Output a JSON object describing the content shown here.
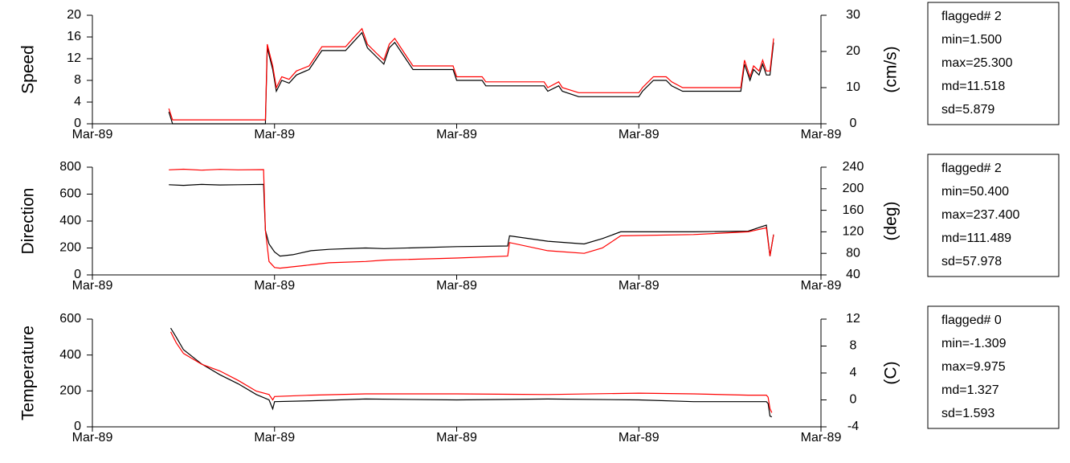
{
  "chart_data": [
    {
      "type": "line",
      "ylabel": "Speed",
      "y2label": "(cm/s)",
      "xlim": [
        0,
        4
      ],
      "xticks": [
        {
          "value": 0,
          "label": "Mar-89"
        },
        {
          "value": 1,
          "label": "Mar-89"
        },
        {
          "value": 2,
          "label": "Mar-89"
        },
        {
          "value": 3,
          "label": "Mar-89"
        },
        {
          "value": 4,
          "label": "Mar-89"
        }
      ],
      "ylim": [
        0,
        20
      ],
      "yticks": [
        0,
        4,
        8,
        12,
        16,
        20
      ],
      "y2lim": [
        0,
        30
      ],
      "y2ticks": [
        0,
        10,
        20,
        30
      ],
      "x": [
        0.42,
        0.44,
        0.95,
        0.96,
        0.99,
        1.01,
        1.04,
        1.08,
        1.12,
        1.19,
        1.23,
        1.26,
        1.39,
        1.43,
        1.48,
        1.51,
        1.57,
        1.6,
        1.63,
        1.66,
        1.72,
        1.76,
        1.98,
        2.0,
        2.14,
        2.16,
        2.48,
        2.5,
        2.56,
        2.58,
        2.67,
        3.0,
        3.02,
        3.08,
        3.15,
        3.18,
        3.24,
        3.56,
        3.58,
        3.61,
        3.63,
        3.66,
        3.68,
        3.7,
        3.72,
        3.74
      ],
      "series": [
        {
          "color": "#000000",
          "values": [
            2.2,
            0,
            0,
            14,
            10,
            6,
            8,
            7.5,
            9,
            10,
            12,
            13.5,
            13.5,
            15,
            16.8,
            14,
            12,
            11,
            14,
            15,
            12,
            10,
            10,
            8,
            8,
            7,
            7,
            6,
            7,
            6,
            5,
            5,
            6,
            8,
            8,
            7,
            6,
            6,
            11,
            8,
            10,
            9,
            11,
            9,
            9,
            15
          ]
        },
        {
          "color": "#ff0000",
          "axis": "y2",
          "values": [
            4.2,
            1.1,
            1.1,
            22,
            16,
            10,
            13,
            12.3,
            14.6,
            16,
            19,
            21.3,
            21.3,
            23.6,
            26.3,
            22,
            19,
            17.6,
            22,
            23.6,
            19,
            16,
            16,
            13,
            13,
            11.6,
            11.6,
            10,
            11.6,
            10,
            8.6,
            8.6,
            10,
            13,
            13,
            11.6,
            10,
            10,
            17.6,
            13,
            16,
            14.6,
            17.6,
            14.6,
            14.6,
            23.6
          ]
        }
      ],
      "stats": [
        "flagged# 2",
        "min=1.500",
        "max=25.300",
        "md=11.518",
        "sd=5.879"
      ]
    },
    {
      "type": "line",
      "ylabel": "Direction",
      "y2label": "(deg)",
      "xlim": [
        0,
        4
      ],
      "xticks": [
        {
          "value": 0,
          "label": "Mar-89"
        },
        {
          "value": 1,
          "label": "Mar-89"
        },
        {
          "value": 2,
          "label": "Mar-89"
        },
        {
          "value": 3,
          "label": "Mar-89"
        },
        {
          "value": 4,
          "label": "Mar-89"
        }
      ],
      "ylim": [
        0,
        800
      ],
      "yticks": [
        0,
        200,
        400,
        600,
        800
      ],
      "y2lim": [
        40,
        240
      ],
      "y2ticks": [
        40,
        80,
        120,
        160,
        200,
        240
      ],
      "x": [
        0.42,
        0.5,
        0.6,
        0.7,
        0.8,
        0.94,
        0.95,
        0.97,
        1.0,
        1.03,
        1.1,
        1.2,
        1.3,
        1.5,
        1.6,
        2.0,
        2.28,
        2.29,
        2.5,
        2.7,
        2.8,
        2.9,
        3.3,
        3.6,
        3.7,
        3.72,
        3.74
      ],
      "series": [
        {
          "color": "#000000",
          "values": [
            670,
            665,
            672,
            668,
            670,
            672,
            330,
            230,
            170,
            140,
            150,
            180,
            190,
            200,
            195,
            210,
            215,
            290,
            250,
            230,
            270,
            320,
            320,
            325,
            370,
            140,
            300
          ]
        },
        {
          "color": "#ff0000",
          "axis": "y2",
          "values": [
            235,
            236.3,
            234.5,
            236,
            235,
            235.5,
            122.5,
            65,
            53.8,
            52.5,
            55,
            58.8,
            62.5,
            65,
            67.5,
            71.3,
            75,
            100,
            85,
            80,
            90,
            112.5,
            115,
            120,
            127.5,
            75,
            115
          ]
        }
      ],
      "stats": [
        "flagged# 2",
        "min=50.400",
        "max=237.400",
        "md=111.489",
        "sd=57.978"
      ]
    },
    {
      "type": "line",
      "ylabel": "Temperature",
      "y2label": "(C)",
      "xlim": [
        0,
        4
      ],
      "xticks": [
        {
          "value": 0,
          "label": "Mar-89"
        },
        {
          "value": 1,
          "label": "Mar-89"
        },
        {
          "value": 2,
          "label": "Mar-89"
        },
        {
          "value": 3,
          "label": "Mar-89"
        },
        {
          "value": 4,
          "label": "Mar-89"
        }
      ],
      "ylim": [
        0,
        600
      ],
      "yticks": [
        0,
        200,
        400,
        600
      ],
      "y2lim": [
        -4,
        12
      ],
      "y2ticks": [
        -4,
        0,
        4,
        8,
        12
      ],
      "x": [
        0.43,
        0.46,
        0.5,
        0.6,
        0.7,
        0.8,
        0.9,
        0.97,
        0.99,
        1.0,
        1.2,
        1.5,
        2.0,
        2.5,
        3.0,
        3.3,
        3.6,
        3.7,
        3.71,
        3.72,
        3.73
      ],
      "series": [
        {
          "color": "#000000",
          "values": [
            550,
            500,
            430,
            350,
            290,
            240,
            180,
            150,
            100,
            140,
            145,
            155,
            150,
            155,
            150,
            140,
            140,
            140,
            130,
            60,
            55
          ]
        },
        {
          "color": "#ff0000",
          "axis": "y2",
          "values": [
            10.1,
            8.5,
            6.9,
            5.3,
            4.3,
            2.9,
            1.3,
            0.8,
            0,
            0.5,
            0.7,
            0.9,
            0.9,
            0.8,
            1.0,
            0.9,
            0.7,
            0.7,
            0.4,
            -1.3,
            -1.9
          ]
        }
      ],
      "stats": [
        "flagged# 0",
        "min=-1.309",
        "max=9.975",
        "md=1.327",
        "sd=1.593"
      ]
    }
  ]
}
